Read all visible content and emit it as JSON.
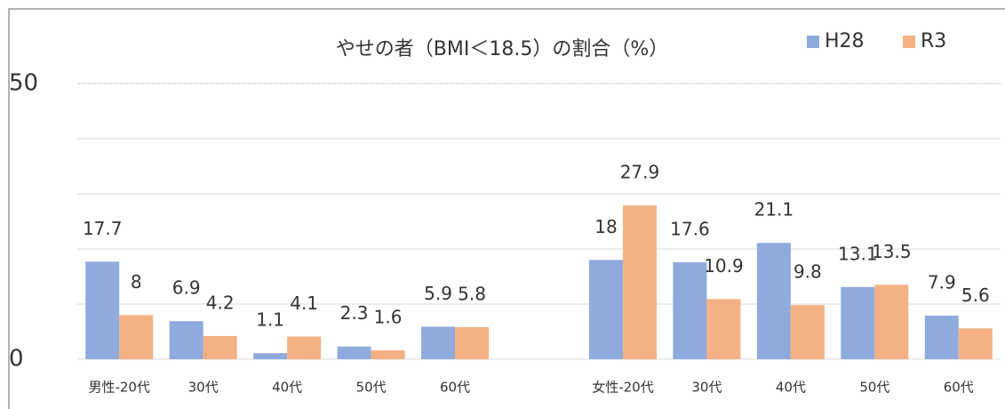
{
  "chart_data": {
    "type": "bar",
    "title": "やせの者（BMI＜18.5）の割合（%）",
    "categories": [
      "男性-20代",
      "30代",
      "40代",
      "50代",
      "60代",
      null,
      "女性-20代",
      "30代",
      "40代",
      "50代",
      "60代"
    ],
    "series": [
      {
        "name": "H28",
        "color": "#8faadc",
        "values": [
          17.7,
          6.9,
          1.1,
          2.3,
          5.9,
          null,
          18,
          17.6,
          21.1,
          13.1,
          7.9
        ]
      },
      {
        "name": "R3",
        "color": "#f4b183",
        "values": [
          8,
          4.2,
          4.1,
          1.6,
          5.8,
          null,
          27.9,
          10.9,
          9.8,
          13.5,
          5.6
        ]
      }
    ],
    "ylim": [
      0,
      50
    ],
    "yticks": [
      0,
      50
    ],
    "minor_yticks": [
      10,
      20,
      30,
      40
    ],
    "grid": true,
    "legend": "top-right"
  }
}
